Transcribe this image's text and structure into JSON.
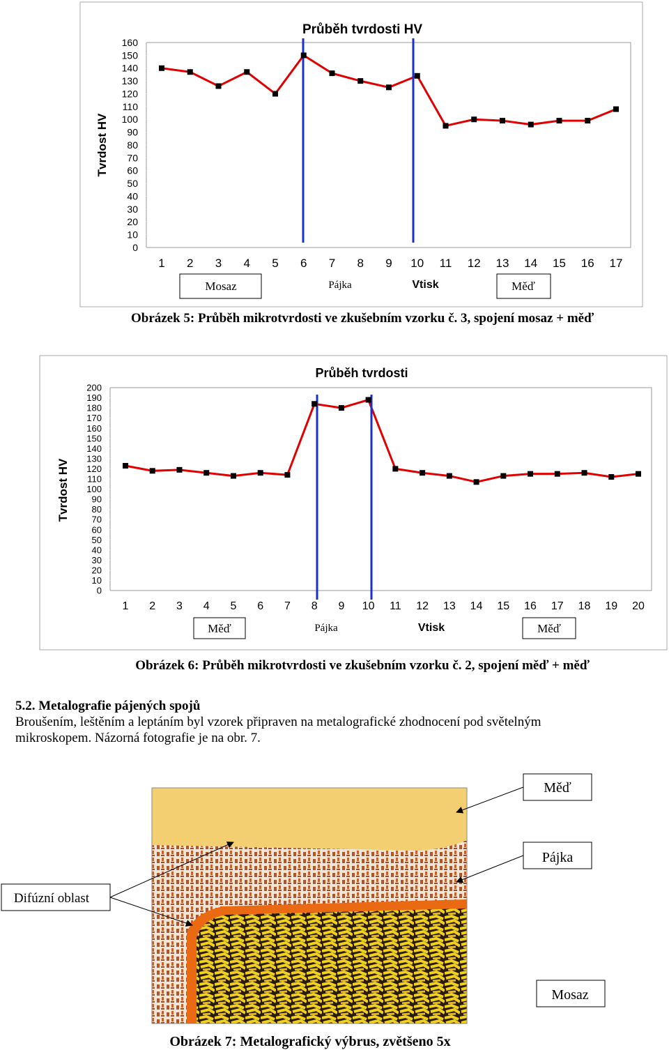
{
  "chart_data": [
    {
      "type": "line",
      "title": "Průběh tvrdosti HV",
      "y_label": "Tvrdost HV",
      "x_label": "Vtisk",
      "categories": [
        "1",
        "2",
        "3",
        "4",
        "5",
        "6",
        "7",
        "8",
        "9",
        "10",
        "11",
        "12",
        "13",
        "14",
        "15",
        "16",
        "17"
      ],
      "values": [
        140,
        137,
        126,
        137,
        120,
        150,
        136,
        130,
        125,
        134,
        95,
        100,
        99,
        96,
        99,
        99,
        108
      ],
      "color": "#e00000",
      "ylim": [
        0,
        160
      ],
      "yticks": [
        0,
        10,
        20,
        30,
        40,
        50,
        60,
        70,
        80,
        90,
        100,
        110,
        120,
        130,
        140,
        150,
        160
      ],
      "zone_labels": [
        "Mosaz",
        "Pájka",
        "Měď"
      ]
    },
    {
      "type": "line",
      "title": "Průběh tvrdosti",
      "y_label": "Tvrdost HV",
      "x_label": "Vtisk",
      "categories": [
        "1",
        "2",
        "3",
        "4",
        "5",
        "6",
        "7",
        "8",
        "9",
        "10",
        "11",
        "12",
        "13",
        "14",
        "15",
        "16",
        "17",
        "18",
        "19",
        "20"
      ],
      "values": [
        123,
        118,
        119,
        116,
        113,
        116,
        114,
        184,
        180,
        188,
        120,
        116,
        113,
        107,
        113,
        115,
        115,
        116,
        112,
        115
      ],
      "color": "#e00000",
      "ylim": [
        0,
        200
      ],
      "yticks": [
        0,
        10,
        20,
        30,
        40,
        50,
        60,
        70,
        80,
        90,
        100,
        110,
        120,
        130,
        140,
        150,
        160,
        170,
        180,
        190,
        200
      ],
      "zone_labels": [
        "Měď",
        "Pájka",
        "Měď"
      ]
    }
  ],
  "captions": [
    "Obrázek 5: Průběh mikrotvrdosti ve zkušebním vzorku č. 3, spojení mosaz + měď",
    "Obrázek 6: Průběh mikrotvrdosti ve zkušebním vzorku č. 2, spojení měď + měď"
  ],
  "section": {
    "heading": "5.2. Metalografie pájených spojů",
    "lines": [
      "Broušením, leštěním a leptáním byl vzorek připraven na metalografické zhodnocení pod světelným",
      "mikroskopem. Názorná fotografie je na obr. 7."
    ]
  },
  "figure": {
    "labels": [
      "Měď",
      "Pájka",
      "Difúzní oblast",
      "Mosaz"
    ],
    "caption": "Obrázek 7: Metalografický výbrus, zvětšeno 5x"
  }
}
